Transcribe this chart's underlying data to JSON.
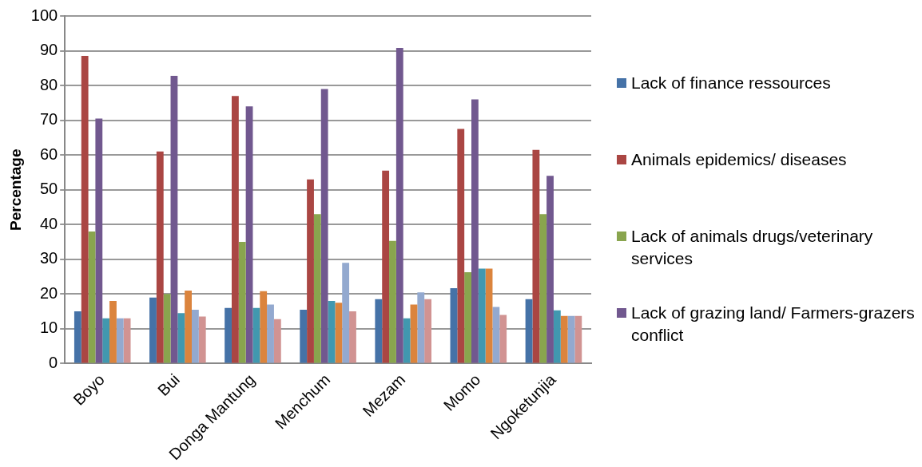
{
  "chart_data": {
    "type": "bar",
    "ylabel": "Percentage",
    "categories": [
      "Boyo",
      "Bui",
      "Donga Mantung",
      "Menchum",
      "Mezam",
      "Momo",
      "Ngoketunjia"
    ],
    "series": [
      {
        "name": "Lack of finance ressources",
        "color": "#4572a7",
        "values": [
          15,
          19,
          16,
          15.5,
          18.5,
          21.7,
          18.5
        ]
      },
      {
        "name": "Animals epidemics/ diseases",
        "color": "#aa4643",
        "values": [
          88.5,
          61,
          77,
          53,
          55.5,
          67.5,
          61.5
        ]
      },
      {
        "name": "Lack of animals drugs/veterinary services",
        "color": "#89a54e",
        "values": [
          38,
          20,
          35,
          43,
          35.3,
          26.3,
          43
        ]
      },
      {
        "name": "Lack of grazing land/ Farmers-grazers conflict",
        "color": "#71588f",
        "values": [
          70.5,
          82.8,
          74,
          79,
          90.8,
          76,
          54
        ]
      },
      {
        "color": "#4198af",
        "values": [
          13,
          14.5,
          16,
          18,
          13,
          27.3,
          15.3
        ]
      },
      {
        "color": "#db843d",
        "values": [
          18,
          21,
          20.8,
          17.5,
          17,
          27.3,
          13.7
        ]
      },
      {
        "color": "#93a9cf",
        "values": [
          13,
          15.5,
          17,
          29,
          20.5,
          16.3,
          13.7
        ]
      },
      {
        "color": "#d19392",
        "values": [
          13,
          13.5,
          12.8,
          15,
          18.5,
          14,
          13.7
        ]
      }
    ],
    "ylim": [
      0,
      100
    ],
    "yticks": [
      0,
      10,
      20,
      30,
      40,
      50,
      60,
      70,
      80,
      90,
      100
    ],
    "grid": "y",
    "legend": "right"
  }
}
